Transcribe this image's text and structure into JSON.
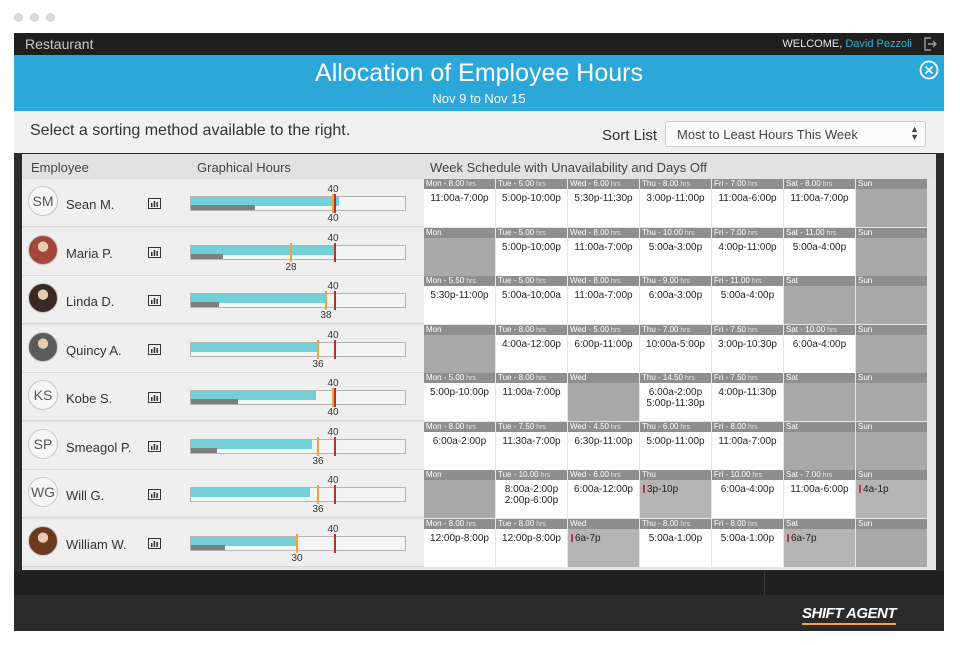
{
  "window": {
    "title": "Restaurant"
  },
  "topbar": {
    "welcome": "WELCOME,",
    "user": "David Pezzoli"
  },
  "header": {
    "title": "Allocation of Employee Hours",
    "range": "Nov 9 to Nov 15"
  },
  "sortbar": {
    "hint": "Select a sorting method available to the right.",
    "label": "Sort List",
    "selected": "Most to Least Hours This Week"
  },
  "columns": {
    "employee": "Employee",
    "graph": "Graphical Hours",
    "week": "Week Schedule with Unavailability and Days Off"
  },
  "colors": {
    "accent": "#2ba8d9",
    "scheduled": "#72d1d6",
    "history": "#7f7f7f",
    "cap": "#b8302c",
    "marker": "#f2a33a"
  },
  "employees": [
    {
      "name": "Sean M.",
      "initials": "SM",
      "photo": false,
      "top_label": "40",
      "bottom_label": "40",
      "scheduled": 0.692,
      "history": 0.3,
      "cap": 0.67,
      "marker": 0.67,
      "days": [
        {
          "head": "Mon - 8.00",
          "unit": "hrs",
          "text": "11:00a-7:00p",
          "state": "work"
        },
        {
          "head": "Tue - 5.00",
          "unit": "hrs",
          "text": "5:00p-10:00p",
          "state": "work"
        },
        {
          "head": "Wed - 6.00",
          "unit": "hrs",
          "text": "5:30p-11:30p",
          "state": "work"
        },
        {
          "head": "Thu - 8.00",
          "unit": "hrs",
          "text": "3:00p-11:00p",
          "state": "work"
        },
        {
          "head": "Fri - 7.00",
          "unit": "hrs",
          "text": "11:00a-6:00p",
          "state": "work"
        },
        {
          "head": "Sat - 8.00",
          "unit": "hrs",
          "text": "11:00a-7:00p",
          "state": "work"
        },
        {
          "head": "Sun",
          "unit": "",
          "text": "",
          "state": "off"
        }
      ]
    },
    {
      "name": "Maria P.",
      "initials": "MP",
      "photo": true,
      "photo_color": "#a4473a",
      "top_label": "40",
      "bottom_label": "28",
      "scheduled": 0.67,
      "history": 0.15,
      "cap": 0.67,
      "marker": 0.47,
      "days": [
        {
          "head": "Mon",
          "unit": "",
          "text": "",
          "state": "off"
        },
        {
          "head": "Tue - 5.00",
          "unit": "hrs",
          "text": "5:00p-10:00p",
          "state": "work"
        },
        {
          "head": "Wed - 8.00",
          "unit": "hrs",
          "text": "11:00a-7:00p",
          "state": "work"
        },
        {
          "head": "Thu - 10.00",
          "unit": "hrs",
          "text": "5:00a-3:00p",
          "state": "work"
        },
        {
          "head": "Fri - 7.00",
          "unit": "hrs",
          "text": "4:00p-11:00p",
          "state": "work"
        },
        {
          "head": "Sat - 11.00",
          "unit": "hrs",
          "text": "5:00a-4:00p",
          "state": "work"
        },
        {
          "head": "Sun",
          "unit": "",
          "text": "",
          "state": "off"
        }
      ]
    },
    {
      "name": "Linda D.",
      "initials": "LD",
      "photo": true,
      "photo_color": "#3a2a26",
      "top_label": "40",
      "bottom_label": "38",
      "scheduled": 0.635,
      "history": 0.13,
      "cap": 0.67,
      "marker": 0.635,
      "days": [
        {
          "head": "Mon - 5.50",
          "unit": "hrs",
          "text": "5:30p-11:00p",
          "state": "work"
        },
        {
          "head": "Tue - 5.00",
          "unit": "hrs",
          "text": "5:00a-10:00a",
          "state": "work"
        },
        {
          "head": "Wed - 8.00",
          "unit": "hrs",
          "text": "11:00a-7:00p",
          "state": "work"
        },
        {
          "head": "Thu - 9.00",
          "unit": "hrs",
          "text": "6:00a-3:00p",
          "state": "work"
        },
        {
          "head": "Fri - 11.00",
          "unit": "hrs",
          "text": "5:00a-4:00p",
          "state": "work"
        },
        {
          "head": "Sat",
          "unit": "",
          "text": "",
          "state": "off"
        },
        {
          "head": "Sun",
          "unit": "",
          "text": "",
          "state": "off"
        }
      ]
    },
    {
      "name": "Quincy A.",
      "initials": "QA",
      "photo": true,
      "photo_color": "#5a5a5a",
      "top_label": "40",
      "bottom_label": "36",
      "scheduled": 0.6,
      "history": 0.0,
      "cap": 0.67,
      "marker": 0.6,
      "days": [
        {
          "head": "Mon",
          "unit": "",
          "text": "",
          "state": "off"
        },
        {
          "head": "Tue - 8.00",
          "unit": "hrs",
          "text": "4:00a-12:00p",
          "state": "work"
        },
        {
          "head": "Wed - 5.00",
          "unit": "hrs",
          "text": "6:00p-11:00p",
          "state": "work"
        },
        {
          "head": "Thu - 7.00",
          "unit": "hrs",
          "text": "10:00a-5:00p",
          "state": "work"
        },
        {
          "head": "Fri - 7.50",
          "unit": "hrs",
          "text": "3:00p-10:30p",
          "state": "work"
        },
        {
          "head": "Sat - 10.00",
          "unit": "hrs",
          "text": "6:00a-4:00p",
          "state": "work"
        },
        {
          "head": "Sun",
          "unit": "",
          "text": "",
          "state": "off"
        }
      ]
    },
    {
      "name": "Kobe S.",
      "initials": "KS",
      "photo": false,
      "top_label": "40",
      "bottom_label": "40",
      "scheduled": 0.585,
      "history": 0.22,
      "cap": 0.67,
      "marker": 0.67,
      "days": [
        {
          "head": "Mon - 5.00",
          "unit": "hrs",
          "text": "5:00p-10:00p",
          "state": "work"
        },
        {
          "head": "Tue - 8.00",
          "unit": "hrs",
          "text": "11:00a-7:00p",
          "state": "work"
        },
        {
          "head": "Wed",
          "unit": "",
          "text": "",
          "state": "off"
        },
        {
          "head": "Thu - 14.50",
          "unit": "hrs",
          "text": "6:00a-2:00p\n5:00p-11:30p",
          "state": "work"
        },
        {
          "head": "Fri - 7.50",
          "unit": "hrs",
          "text": "4:00p-11:30p",
          "state": "work"
        },
        {
          "head": "Sat",
          "unit": "",
          "text": "",
          "state": "off"
        },
        {
          "head": "Sun",
          "unit": "",
          "text": "",
          "state": "off"
        }
      ]
    },
    {
      "name": "Smeagol P.",
      "initials": "SP",
      "photo": false,
      "top_label": "40",
      "bottom_label": "36",
      "scheduled": 0.565,
      "history": 0.12,
      "cap": 0.67,
      "marker": 0.6,
      "days": [
        {
          "head": "Mon - 8.00",
          "unit": "hrs",
          "text": "6:00a-2:00p",
          "state": "work"
        },
        {
          "head": "Tue - 7.50",
          "unit": "hrs",
          "text": "11:30a-7:00p",
          "state": "work"
        },
        {
          "head": "Wed - 4.50",
          "unit": "hrs",
          "text": "6:30p-11:00p",
          "state": "work"
        },
        {
          "head": "Thu - 6.00",
          "unit": "hrs",
          "text": "5:00p-11:00p",
          "state": "work"
        },
        {
          "head": "Fri - 8.00",
          "unit": "hrs",
          "text": "11:00a-7:00p",
          "state": "work"
        },
        {
          "head": "Sat",
          "unit": "",
          "text": "",
          "state": "off"
        },
        {
          "head": "Sun",
          "unit": "",
          "text": "",
          "state": "off"
        }
      ]
    },
    {
      "name": "Will G.",
      "initials": "WG",
      "photo": false,
      "top_label": "40",
      "bottom_label": "36",
      "scheduled": 0.555,
      "history": 0.0,
      "cap": 0.67,
      "marker": 0.6,
      "days": [
        {
          "head": "Mon",
          "unit": "",
          "text": "",
          "state": "off"
        },
        {
          "head": "Tue - 10.00",
          "unit": "hrs",
          "text": "8:00a-2:00p\n2:00p-6:00p",
          "state": "work"
        },
        {
          "head": "Wed - 6.00",
          "unit": "hrs",
          "text": "6:00a-12:00p",
          "state": "work"
        },
        {
          "head": "Thu",
          "unit": "",
          "text": "3p-10p",
          "state": "una"
        },
        {
          "head": "Fri - 10.00",
          "unit": "hrs",
          "text": "6:00a-4:00p",
          "state": "work"
        },
        {
          "head": "Sat - 7.00",
          "unit": "hrs",
          "text": "11:00a-6:00p",
          "state": "work"
        },
        {
          "head": "Sun",
          "unit": "",
          "text": "4a-1p",
          "state": "una"
        }
      ]
    },
    {
      "name": "William W.",
      "initials": "WW",
      "photo": true,
      "photo_color": "#6b3a1e",
      "top_label": "40",
      "bottom_label": "30",
      "scheduled": 0.5,
      "history": 0.16,
      "cap": 0.67,
      "marker": 0.5,
      "days": [
        {
          "head": "Mon - 8.00",
          "unit": "hrs",
          "text": "12:00p-8:00p",
          "state": "work"
        },
        {
          "head": "Tue - 8.00",
          "unit": "hrs",
          "text": "12:00p-8:00p",
          "state": "work"
        },
        {
          "head": "Wed",
          "unit": "",
          "text": "6a-7p",
          "state": "una"
        },
        {
          "head": "Thu - 8.00",
          "unit": "hrs",
          "text": "5:00a-1:00p",
          "state": "work"
        },
        {
          "head": "Fri - 8.00",
          "unit": "hrs",
          "text": "5:00a-1:00p",
          "state": "work"
        },
        {
          "head": "Sat",
          "unit": "",
          "text": "6a-7p",
          "state": "una"
        },
        {
          "head": "Sun",
          "unit": "",
          "text": "",
          "state": "off"
        }
      ]
    }
  ],
  "brand": {
    "logo": "SHIFT AGENT"
  }
}
